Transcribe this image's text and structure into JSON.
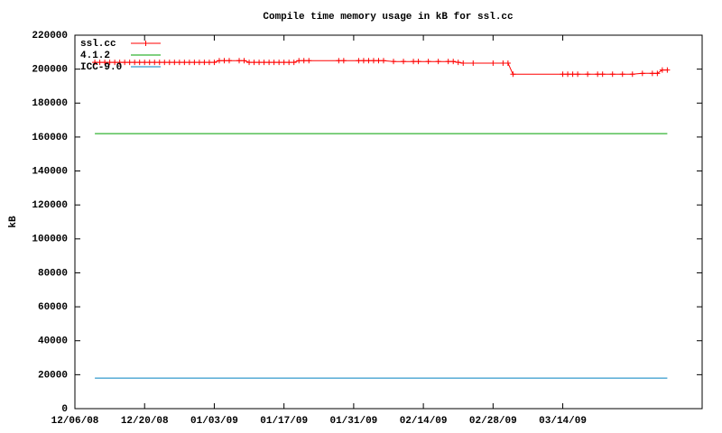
{
  "chart_data": {
    "type": "line",
    "title": "Compile time memory usage in kB for ssl.cc",
    "y_label": "kB",
    "xlim": [
      "2008-12-06",
      "2009-04-11"
    ],
    "xticks": [
      {
        "value": "2008-12-06",
        "label": "12/06/08"
      },
      {
        "value": "2008-12-20",
        "label": "12/20/08"
      },
      {
        "value": "2009-01-03",
        "label": "01/03/09"
      },
      {
        "value": "2009-01-17",
        "label": "01/17/09"
      },
      {
        "value": "2009-01-31",
        "label": "01/31/09"
      },
      {
        "value": "2009-02-14",
        "label": "02/14/09"
      },
      {
        "value": "2009-02-28",
        "label": "02/28/09"
      },
      {
        "value": "2009-03-14",
        "label": "03/14/09"
      }
    ],
    "ylim": [
      0,
      220000
    ],
    "yticks": [
      0,
      20000,
      40000,
      60000,
      80000,
      100000,
      120000,
      140000,
      160000,
      180000,
      200000,
      220000
    ],
    "legend": "top-left",
    "series": [
      {
        "name": "ssl.cc",
        "color": "#ff0000",
        "markers": true,
        "x": [
          "2008-12-10",
          "2008-12-11",
          "2008-12-12",
          "2008-12-13",
          "2008-12-14",
          "2008-12-15",
          "2008-12-16",
          "2008-12-17",
          "2008-12-18",
          "2008-12-19",
          "2008-12-20",
          "2008-12-21",
          "2008-12-22",
          "2008-12-23",
          "2008-12-24",
          "2008-12-25",
          "2008-12-26",
          "2008-12-27",
          "2008-12-28",
          "2008-12-29",
          "2008-12-30",
          "2008-12-31",
          "2009-01-01",
          "2009-01-02",
          "2009-01-03",
          "2009-01-04",
          "2009-01-05",
          "2009-01-06",
          "2009-01-08",
          "2009-01-09",
          "2009-01-10",
          "2009-01-11",
          "2009-01-12",
          "2009-01-13",
          "2009-01-14",
          "2009-01-15",
          "2009-01-16",
          "2009-01-17",
          "2009-01-18",
          "2009-01-19",
          "2009-01-20",
          "2009-01-21",
          "2009-01-22",
          "2009-01-28",
          "2009-01-29",
          "2009-02-01",
          "2009-02-02",
          "2009-02-03",
          "2009-02-04",
          "2009-02-05",
          "2009-02-06",
          "2009-02-08",
          "2009-02-10",
          "2009-02-12",
          "2009-02-13",
          "2009-02-15",
          "2009-02-17",
          "2009-02-19",
          "2009-02-20",
          "2009-02-21",
          "2009-02-22",
          "2009-02-24",
          "2009-02-28",
          "2009-03-02",
          "2009-03-03",
          "2009-03-04",
          "2009-03-14",
          "2009-03-15",
          "2009-03-16",
          "2009-03-17",
          "2009-03-19",
          "2009-03-21",
          "2009-03-22",
          "2009-03-24",
          "2009-03-26",
          "2009-03-28",
          "2009-03-30",
          "2009-04-01",
          "2009-04-02",
          "2009-04-03",
          "2009-04-04"
        ],
        "values": [
          204000,
          204000,
          204000,
          204000,
          204000,
          204000,
          204000,
          204000,
          204000,
          204000,
          204000,
          204000,
          204000,
          204000,
          204000,
          204000,
          204000,
          204000,
          204000,
          204000,
          204000,
          204000,
          204000,
          204000,
          204000,
          205000,
          205000,
          205000,
          205000,
          205000,
          204000,
          204000,
          204000,
          204000,
          204000,
          204000,
          204000,
          204000,
          204000,
          204000,
          205000,
          205000,
          205000,
          205000,
          205000,
          205000,
          205000,
          205000,
          205000,
          205000,
          205000,
          204500,
          204500,
          204500,
          204500,
          204500,
          204500,
          204500,
          204500,
          204000,
          203500,
          203500,
          203500,
          203500,
          203500,
          197000,
          197000,
          197000,
          197000,
          197000,
          197000,
          197000,
          197000,
          197000,
          197000,
          197000,
          197500,
          197500,
          197500,
          199500,
          199500
        ]
      },
      {
        "name": "4.1.2",
        "color": "#00a000",
        "markers": false,
        "x": [
          "2008-12-10",
          "2009-04-04"
        ],
        "values": [
          162000,
          162000
        ]
      },
      {
        "name": "ICC-9.0",
        "color": "#0080c0",
        "markers": false,
        "x": [
          "2008-12-10",
          "2009-04-04"
        ],
        "values": [
          18000,
          18000
        ]
      }
    ]
  }
}
